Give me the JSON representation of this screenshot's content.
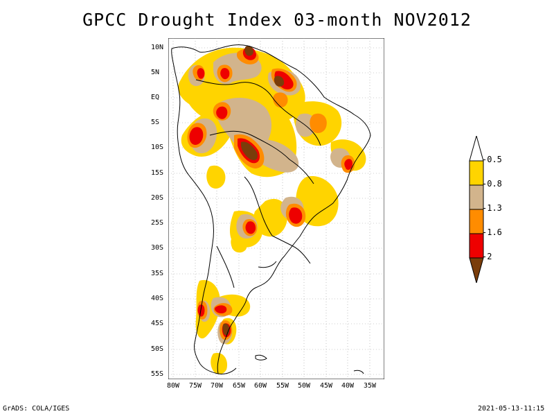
{
  "title": "GPCC Drought Index 03-month NOV2012",
  "map": {
    "lat_labels": [
      "10N",
      "5N",
      "EQ",
      "5S",
      "10S",
      "15S",
      "20S",
      "25S",
      "30S",
      "35S",
      "40S",
      "45S",
      "50S",
      "55S"
    ],
    "lon_labels": [
      "80W",
      "75W",
      "70W",
      "65W",
      "60W",
      "55W",
      "50W",
      "45W",
      "40W",
      "35W"
    ],
    "lon_range": [
      -80,
      -33
    ],
    "lat_range": [
      -56,
      12
    ],
    "grid": "dotted",
    "fill_colors": {
      "lt_minus_2": "#7a3d0a",
      "minus_2_to_minus_1_6": "#ee0000",
      "minus_1_6_to_minus_1_3": "#ff8c00",
      "minus_1_3_to_minus_0_8": "#d2b48c",
      "minus_0_8_to_minus_0_5": "#ffd400",
      "gt_minus_0_5": "#ffffff"
    }
  },
  "colorbar": {
    "levels": [
      "-0.5",
      "-0.8",
      "-1.3",
      "-1.6",
      "-2"
    ],
    "colors": [
      "#ffffff",
      "#ffd400",
      "#d2b48c",
      "#ff8c00",
      "#ee0000",
      "#7a3d0a"
    ]
  },
  "footer": {
    "left": "GrADS: COLA/IGES",
    "right": "2021-05-13-11:15"
  }
}
